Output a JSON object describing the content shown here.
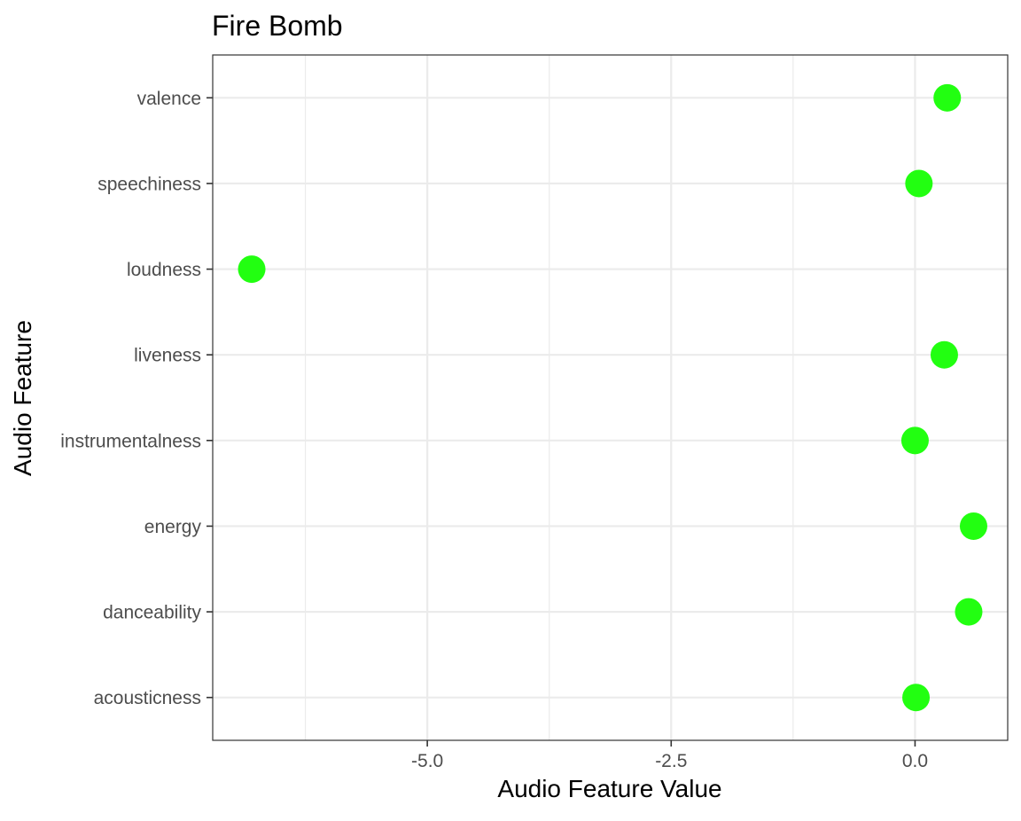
{
  "chart_data": {
    "type": "scatter",
    "title": "Fire Bomb",
    "xlabel": "Audio Feature Value",
    "ylabel": "Audio Feature",
    "xlim": [
      -7.2,
      0.95
    ],
    "x_ticks": [
      -5.0,
      -2.5,
      0.0
    ],
    "x_tick_labels": [
      "-5.0",
      "-2.5",
      "0.0"
    ],
    "x_minor_ticks": [
      -6.25,
      -3.75,
      -1.25
    ],
    "categories": [
      "acousticness",
      "danceability",
      "energy",
      "instrumentalness",
      "liveness",
      "loudness",
      "speechiness",
      "valence"
    ],
    "values": [
      0.01,
      0.55,
      0.6,
      0.0,
      0.3,
      -6.8,
      0.04,
      0.33
    ],
    "point_color": "#22ff11",
    "grid": true,
    "legend": "none"
  }
}
